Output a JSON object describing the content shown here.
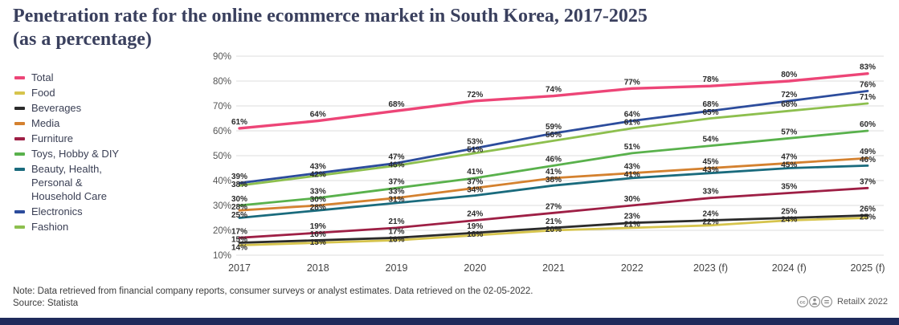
{
  "title": "Penetration rate for the online ecommerce market in South Korea, 2017-2025 (as a percentage)",
  "title_lines": [
    "Penetration rate for the online ecommerce market in South Korea, 2017-2025",
    "(as a percentage)"
  ],
  "note": "Note: Data retrieved from financial company reports, consumer surveys or analyst estimates. Data retrieved on the 02-05-2022.",
  "source": "Source: Statista",
  "footer": {
    "license_icons": [
      "cc-icon",
      "by-icon",
      "nd-icon"
    ],
    "credit": "RetailX 2022"
  },
  "colors": {
    "title": "#3A405E",
    "grid": "#DCDCDC",
    "axis_text": "#555555",
    "data_label": "#2A2A2A",
    "bottom_bar": "#1F2A5B"
  },
  "chart_data": {
    "type": "line",
    "title": "Penetration rate for the online ecommerce market in South Korea, 2017-2025 (as a percentage)",
    "x": [
      "2017",
      "2018",
      "2019",
      "2020",
      "2021",
      "2022",
      "2023 (f)",
      "2024 (f)",
      "2025 (f)"
    ],
    "xlabel": "",
    "ylabel": "",
    "ylim": [
      10,
      90
    ],
    "yticks": [
      10,
      20,
      30,
      40,
      50,
      60,
      70,
      80,
      90
    ],
    "ytick_suffix": "%",
    "grid": true,
    "legend_position": "left",
    "data_labels": true,
    "series": [
      {
        "name": "Total",
        "color": "#ED4577",
        "values": [
          61,
          64,
          68,
          72,
          74,
          77,
          78,
          80,
          83
        ]
      },
      {
        "name": "Food",
        "color": "#D6C44C",
        "values": [
          14,
          15,
          16,
          18,
          20,
          21,
          22,
          24,
          25
        ]
      },
      {
        "name": "Beverages",
        "color": "#2B2B2B",
        "values": [
          15,
          16,
          17,
          19,
          21,
          23,
          24,
          25,
          26
        ]
      },
      {
        "name": "Media",
        "color": "#D4812F",
        "values": [
          28,
          30,
          33,
          37,
          41,
          43,
          45,
          47,
          49
        ]
      },
      {
        "name": "Furniture",
        "color": "#9E1F45",
        "values": [
          17,
          19,
          21,
          24,
          27,
          30,
          33,
          35,
          37
        ]
      },
      {
        "name": "Toys, Hobby & DIY",
        "color": "#59B14C",
        "values": [
          30,
          33,
          37,
          41,
          46,
          51,
          54,
          57,
          60
        ]
      },
      {
        "name": "Beauty, Health, Personal & Household Care",
        "color": "#1A6B7D",
        "values": [
          25,
          28,
          31,
          34,
          38,
          41,
          43,
          45,
          46
        ]
      },
      {
        "name": "Electronics",
        "color": "#2C4C9C",
        "values": [
          39,
          43,
          47,
          53,
          59,
          64,
          68,
          72,
          76
        ]
      },
      {
        "name": "Fashion",
        "color": "#8DBF4E",
        "values": [
          38,
          42,
          46,
          51,
          56,
          61,
          65,
          68,
          71
        ]
      }
    ]
  }
}
